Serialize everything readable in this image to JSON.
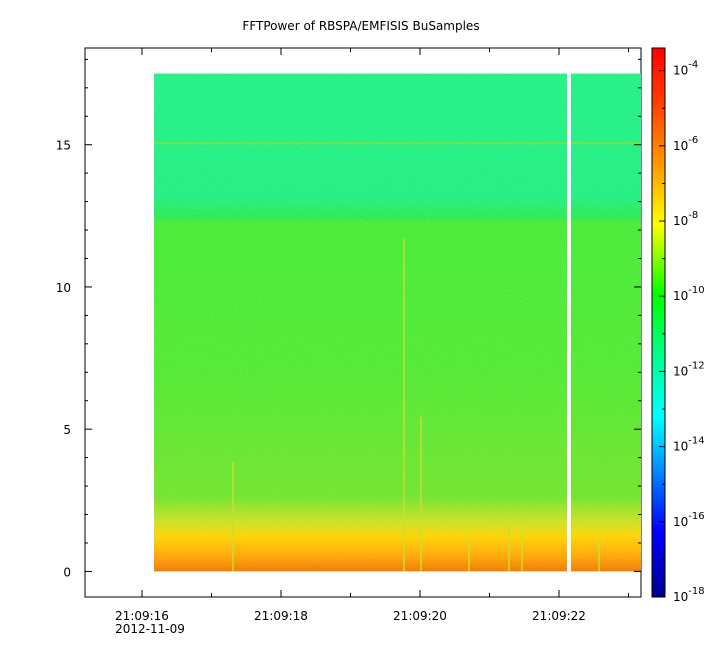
{
  "chart_data": {
    "type": "heatmap",
    "title": "FFTPower of RBSPA/EMFISIS  BuSamples",
    "xlabel": "",
    "ylabel": "",
    "x_tick_labels": [
      "21:09:16",
      "21:09:18",
      "21:09:20",
      "21:09:22"
    ],
    "x_secondary_label": "2012-11-09",
    "y_ticks": [
      0,
      5,
      10,
      15
    ],
    "y_tick_labels": [
      "0",
      "5",
      "10",
      "15"
    ],
    "ylim": [
      -0.9,
      18.4
    ],
    "data_y_range": [
      0,
      17.5
    ],
    "colorbar": {
      "scale": "log",
      "range": [
        "1e-18",
        "4e-4"
      ],
      "tick_labels": [
        {
          "base": "10",
          "exp": "-18"
        },
        {
          "base": "10",
          "exp": "-16"
        },
        {
          "base": "10",
          "exp": "-14"
        },
        {
          "base": "10",
          "exp": "-12"
        },
        {
          "base": "10",
          "exp": "-10"
        },
        {
          "base": "10",
          "exp": "-8"
        },
        {
          "base": "10",
          "exp": "-6"
        },
        {
          "base": "10",
          "exp": "-4"
        }
      ],
      "colors": [
        "#00008c",
        "#0000ff",
        "#00ffff",
        "#00ff00",
        "#ffff00",
        "#ff8000",
        "#ff0000"
      ]
    },
    "spectrogram_colors": {
      "low_freq_band": "#ff8c00",
      "mid_band": "#20e040",
      "high_band": "#10f080",
      "line_15": "#7ee040"
    }
  }
}
